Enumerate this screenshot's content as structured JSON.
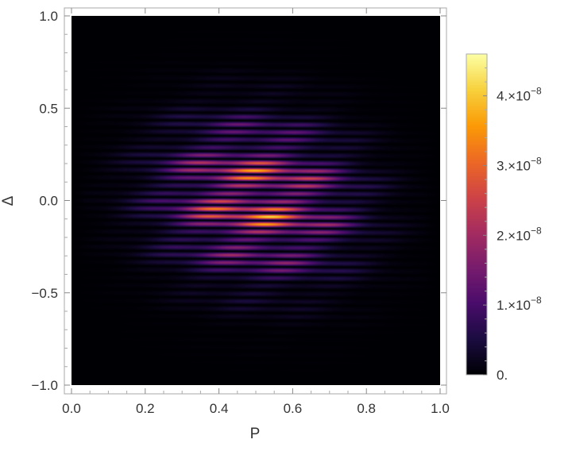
{
  "chart_data": {
    "type": "heatmap",
    "xlabel": "P",
    "ylabel": "Δ",
    "xlim": [
      0.0,
      1.0
    ],
    "ylim": [
      -1.0,
      1.0
    ],
    "x_ticks": [
      {
        "value": 0.0,
        "label": "0.0"
      },
      {
        "value": 0.2,
        "label": "0.2"
      },
      {
        "value": 0.4,
        "label": "0.4"
      },
      {
        "value": 0.6,
        "label": "0.6"
      },
      {
        "value": 0.8,
        "label": "0.8"
      },
      {
        "value": 1.0,
        "label": "1.0"
      }
    ],
    "y_ticks": [
      {
        "value": -1.0,
        "label": "−1.0"
      },
      {
        "value": -0.5,
        "label": "−0.5"
      },
      {
        "value": 0.0,
        "label": "0.0"
      },
      {
        "value": 0.5,
        "label": "0.5"
      },
      {
        "value": 1.0,
        "label": "1.0"
      }
    ],
    "colorbar": {
      "min": 0,
      "max": 4.6e-08,
      "ticks": [
        {
          "value": 0,
          "label": "0.",
          "exponent": ""
        },
        {
          "value": 1e-08,
          "label": "1.×10",
          "exponent": "−8"
        },
        {
          "value": 2e-08,
          "label": "2.×10",
          "exponent": "−8"
        },
        {
          "value": 3e-08,
          "label": "3.×10",
          "exponent": "−8"
        },
        {
          "value": 4e-08,
          "label": "4.×10",
          "exponent": "−8"
        }
      ],
      "colormap": [
        "#000004",
        "#1b0c41",
        "#4a0c6b",
        "#781c6d",
        "#a52c60",
        "#cf4446",
        "#ed6925",
        "#fb9b06",
        "#f7d13d",
        "#fcffa4"
      ]
    },
    "intensity_model": {
      "peak": 4.6e-08,
      "envelope_center": [
        0.5,
        0.0
      ],
      "envelope_width": [
        0.22,
        0.35
      ],
      "fine_fringe_count": 48,
      "coarse_band_count": 8,
      "tilt": 0.18
    },
    "grid": false,
    "colorbar_placement": "right"
  }
}
